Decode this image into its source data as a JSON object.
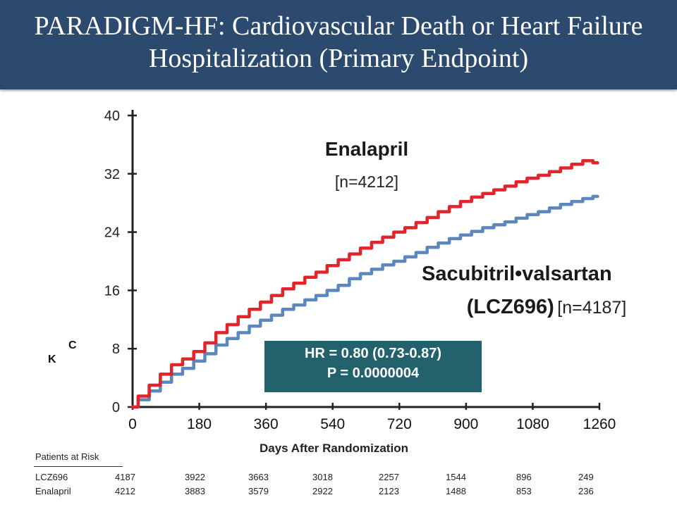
{
  "header": {
    "title": "PARADIGM-HF: Cardiovascular Death or Heart Failure Hospitalization (Primary Endpoint)",
    "background": "#2c4a6e"
  },
  "chart_data": {
    "type": "line",
    "xlabel": "Days After Randomization",
    "ylabel": "",
    "xlim": [
      0,
      1260
    ],
    "ylim": [
      0,
      40
    ],
    "x_ticks": [
      "0",
      "180",
      "360",
      "540",
      "720",
      "900",
      "1080",
      "1260"
    ],
    "y_ticks": [
      "0",
      "8",
      "16",
      "24",
      "32",
      "40"
    ],
    "grid": false,
    "series": [
      {
        "name": "Enalapril",
        "label_line1": "Enalapril",
        "label_line2": "[n=4212]",
        "color": "#e3242b",
        "x": [
          0,
          30,
          60,
          90,
          120,
          150,
          180,
          210,
          240,
          270,
          300,
          330,
          360,
          390,
          420,
          450,
          480,
          510,
          540,
          570,
          600,
          630,
          660,
          690,
          720,
          750,
          780,
          810,
          840,
          870,
          900,
          930,
          960,
          990,
          1020,
          1050,
          1080,
          1110,
          1140,
          1170,
          1200,
          1230,
          1255
        ],
        "y": [
          0,
          1.5,
          3.0,
          4.5,
          5.8,
          6.6,
          7.6,
          8.8,
          10.2,
          11.3,
          12.4,
          13.4,
          14.4,
          15.3,
          16.2,
          17.0,
          17.8,
          18.5,
          19.4,
          20.2,
          21.0,
          21.8,
          22.6,
          23.3,
          24.0,
          24.6,
          25.3,
          26.0,
          26.8,
          27.5,
          28.2,
          28.8,
          29.3,
          29.8,
          30.3,
          30.9,
          31.4,
          31.8,
          32.3,
          32.8,
          33.3,
          33.8,
          33.5
        ]
      },
      {
        "name": "Sacubitril•valsartan",
        "label_line1": "Sacubitril•valsartan",
        "label_line2a": "(LCZ696)",
        "label_line2b": "[n=4187]",
        "color": "#5b87bd",
        "x": [
          0,
          30,
          60,
          90,
          120,
          150,
          180,
          210,
          240,
          270,
          300,
          330,
          360,
          390,
          420,
          450,
          480,
          510,
          540,
          570,
          600,
          630,
          660,
          690,
          720,
          750,
          780,
          810,
          840,
          870,
          900,
          930,
          960,
          990,
          1020,
          1050,
          1080,
          1110,
          1140,
          1170,
          1200,
          1230,
          1255
        ],
        "y": [
          0,
          1.0,
          2.2,
          3.4,
          4.5,
          5.3,
          6.3,
          7.3,
          8.5,
          9.4,
          10.2,
          11.1,
          11.9,
          12.6,
          13.4,
          14.0,
          14.7,
          15.3,
          16.0,
          16.7,
          17.6,
          18.3,
          18.9,
          19.5,
          20.0,
          20.6,
          21.2,
          21.9,
          22.5,
          23.1,
          23.6,
          24.1,
          24.6,
          25.0,
          25.4,
          25.9,
          26.4,
          26.8,
          27.3,
          27.8,
          28.2,
          28.6,
          28.9
        ]
      }
    ],
    "annotations": {
      "hr": "HR = 0.80 (0.73-0.87)",
      "p": "P = 0.0000004",
      "box_color": "#23626d",
      "mark_k": "K",
      "mark_c": "C"
    },
    "risk_table": {
      "title": "Patients at Risk",
      "rows": [
        {
          "label": "LCZ696",
          "values": [
            "4187",
            "3922",
            "3663",
            "3018",
            "2257",
            "1544",
            "896",
            "249"
          ]
        },
        {
          "label": "Enalapril",
          "values": [
            "4212",
            "3883",
            "3579",
            "2922",
            "2123",
            "1488",
            "853",
            "236"
          ]
        }
      ]
    }
  }
}
